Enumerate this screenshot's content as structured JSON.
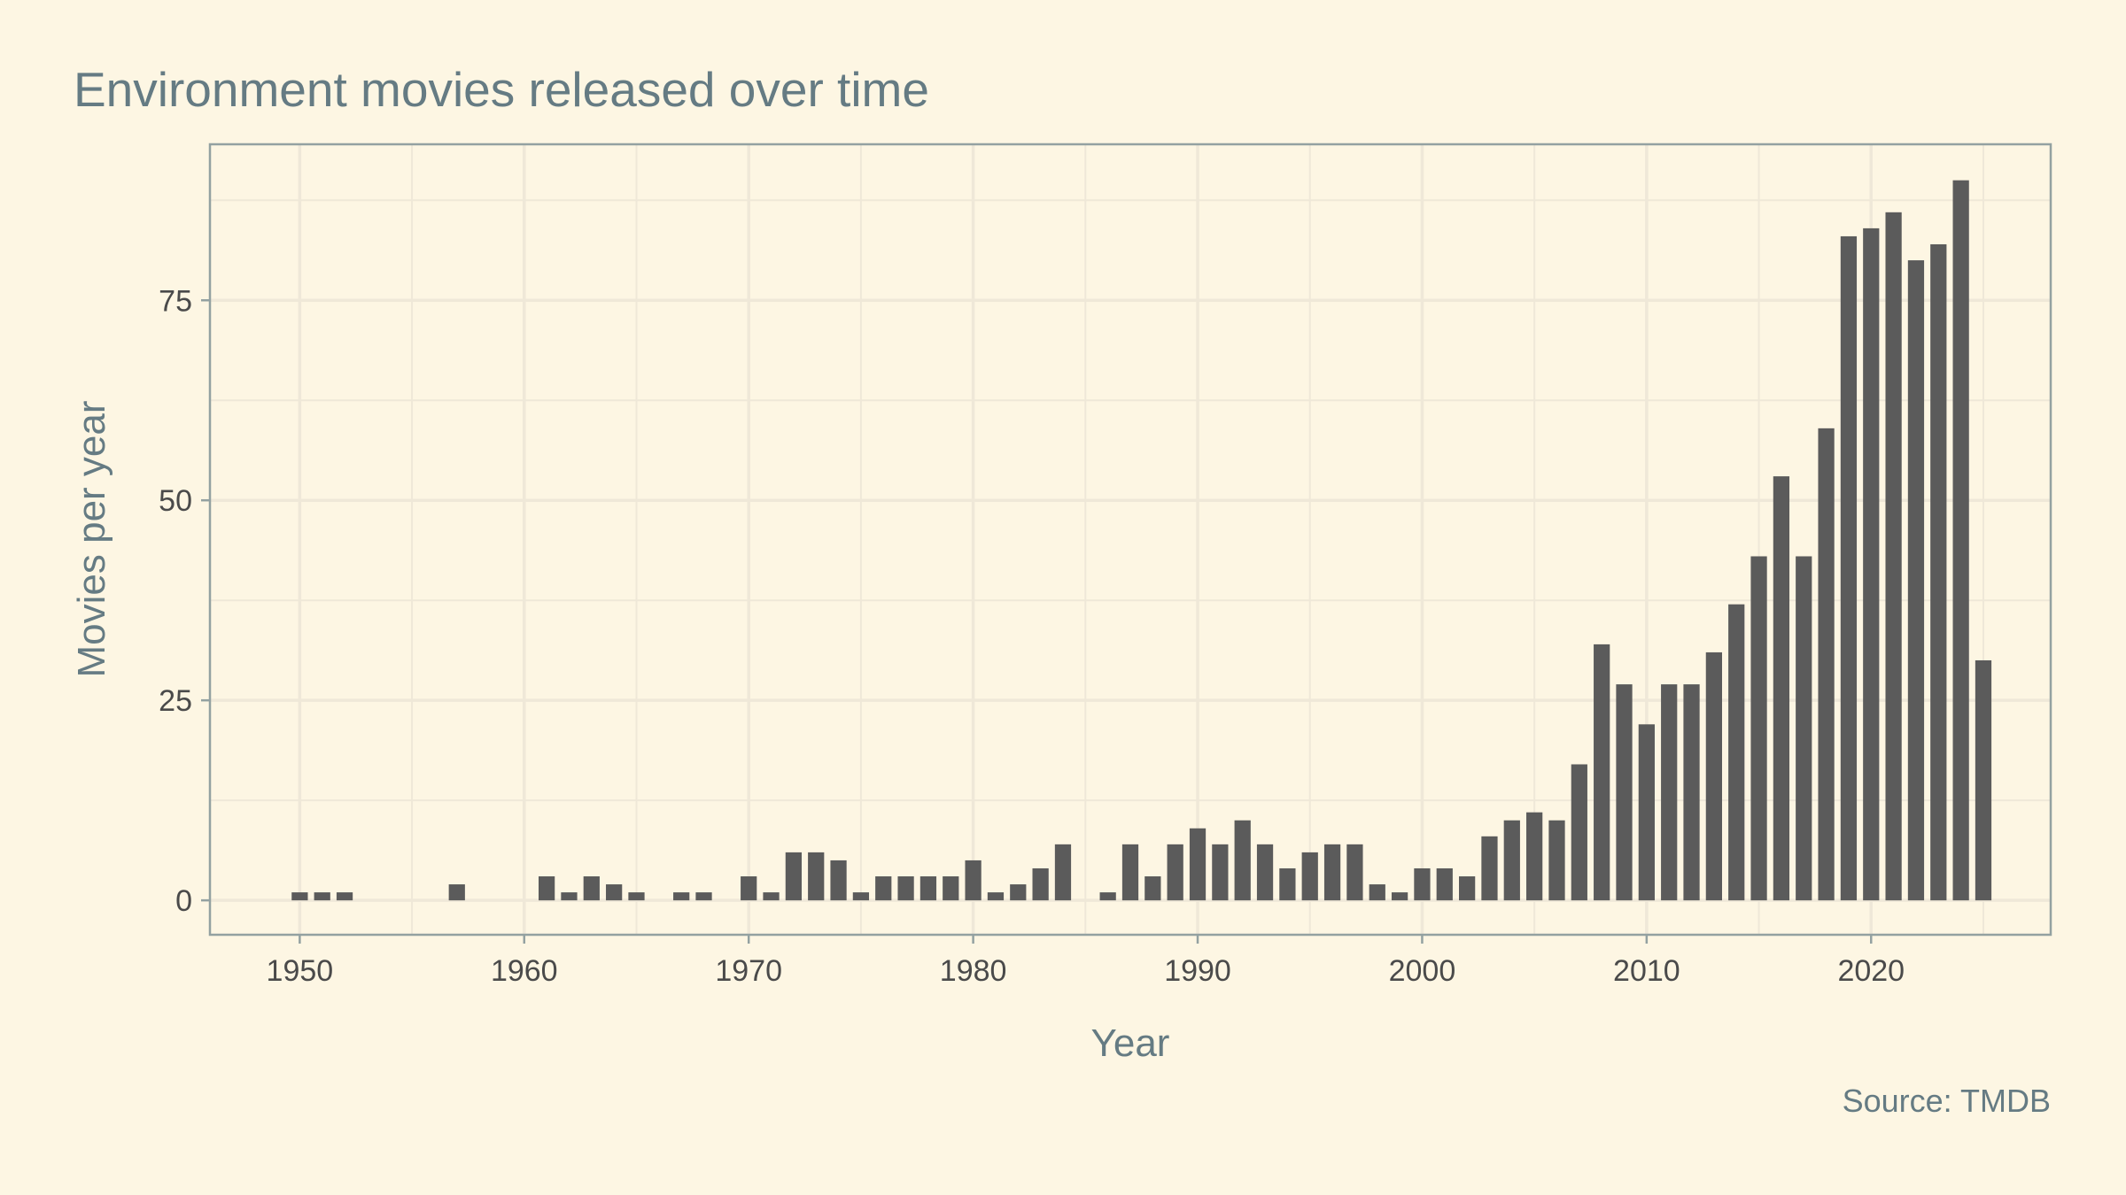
{
  "chart_data": {
    "type": "bar",
    "title": "Environment movies released over time",
    "xlabel": "Year",
    "ylabel": "Movies per year",
    "caption": "Source: TMDB",
    "xlim": [
      1946,
      2028
    ],
    "ylim": [
      -4.3,
      94.5
    ],
    "xticks": [
      "1950",
      "1960",
      "1970",
      "1980",
      "1990",
      "2000",
      "2010",
      "2020"
    ],
    "yticks": [
      "0",
      "25",
      "50",
      "75"
    ],
    "grid": true,
    "colors": {
      "background": "#fdf6e3",
      "bar": "#5b5b5b",
      "grid": "#efe8d8",
      "axis": "#93a1a1",
      "title": "#657b83",
      "tick_text": "#4a4a4a"
    },
    "x": [
      1950,
      1951,
      1952,
      1957,
      1961,
      1962,
      1963,
      1964,
      1965,
      1967,
      1968,
      1970,
      1971,
      1972,
      1973,
      1974,
      1975,
      1976,
      1977,
      1978,
      1979,
      1980,
      1981,
      1982,
      1983,
      1984,
      1986,
      1987,
      1988,
      1989,
      1990,
      1991,
      1992,
      1993,
      1994,
      1995,
      1996,
      1997,
      1998,
      1999,
      2000,
      2001,
      2002,
      2003,
      2004,
      2005,
      2006,
      2007,
      2008,
      2009,
      2010,
      2011,
      2012,
      2013,
      2014,
      2015,
      2016,
      2017,
      2018,
      2019,
      2020,
      2021,
      2022,
      2023,
      2024,
      2025
    ],
    "values": [
      1,
      1,
      1,
      2,
      3,
      1,
      3,
      2,
      1,
      1,
      1,
      3,
      1,
      6,
      6,
      5,
      1,
      3,
      3,
      3,
      3,
      5,
      1,
      2,
      4,
      7,
      1,
      7,
      3,
      7,
      9,
      7,
      10,
      7,
      4,
      6,
      7,
      7,
      2,
      1,
      4,
      4,
      3,
      8,
      10,
      11,
      10,
      17,
      32,
      27,
      22,
      27,
      27,
      31,
      37,
      43,
      53,
      43,
      59,
      83,
      84,
      86,
      80,
      82,
      90,
      30
    ]
  }
}
